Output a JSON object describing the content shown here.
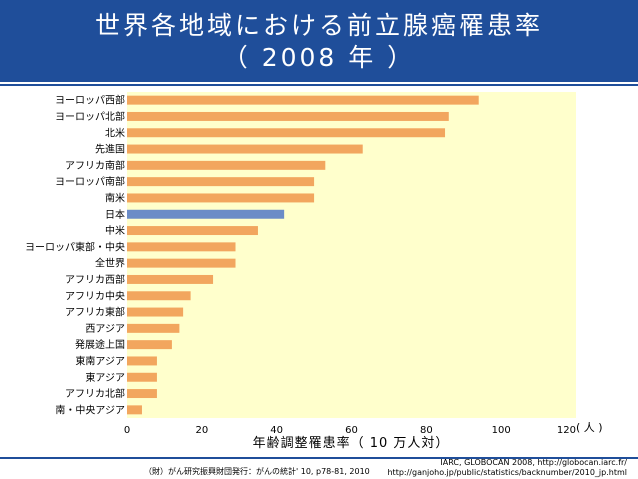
{
  "slide": {
    "title_line1": "世界各地域における前立腺癌罹患率",
    "title_line2": "（ 2008 年 ）"
  },
  "chart_data": {
    "type": "bar",
    "orientation": "horizontal",
    "categories": [
      "ヨーロッパ西部",
      "ヨーロッパ北部",
      "北米",
      "先進国",
      "アフリカ南部",
      "ヨーロッパ南部",
      "南米",
      "日本",
      "中米",
      "ヨーロッパ東部・中央",
      "全世界",
      "アフリカ西部",
      "アフリカ中央",
      "アフリカ東部",
      "西アジア",
      "発展途上国",
      "東南アジア",
      "東アジア",
      "アフリカ北部",
      "南・中央アジア"
    ],
    "values": [
      94,
      86,
      85,
      63,
      53,
      50,
      50,
      42,
      35,
      29,
      29,
      23,
      17,
      15,
      14,
      12,
      8,
      8,
      8,
      4
    ],
    "highlight_category": "日本",
    "xlabel": "年齢調整罹患率（ 10 万人対）",
    "x_unit": "( 人 )",
    "xlim": [
      0,
      120
    ],
    "xticks": [
      0,
      20,
      40,
      60,
      80,
      100,
      120
    ],
    "bar_color": "#f2a65e",
    "highlight_color": "#6b8cc7",
    "plot_background": "#ffffcc",
    "grid": false
  },
  "source": {
    "left": "（財）がん研究振興財団発行：がんの統計' 10, p78-81, 2010",
    "right_line1": "IARC, GLOBOCAN 2008, http://globocan.iarc.fr/",
    "right_line2": "http://ganjoho.jp/public/statistics/backnumber/2010_jp.html"
  }
}
